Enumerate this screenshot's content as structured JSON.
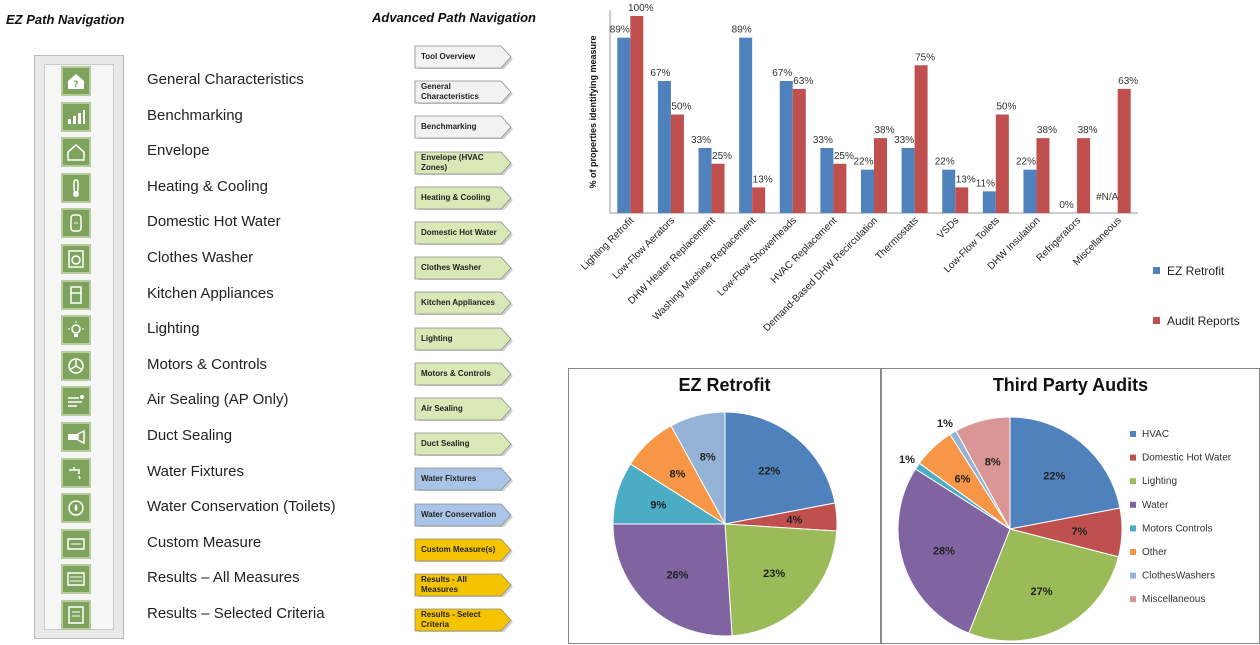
{
  "headers": {
    "ez_path": "EZ Path Navigation",
    "advanced_path": "Advanced Path Navigation"
  },
  "ez_nav": [
    {
      "label": "General Characteristics",
      "icon": "house-question-icon"
    },
    {
      "label": "Benchmarking",
      "icon": "bar-signal-icon"
    },
    {
      "label": "Envelope",
      "icon": "house-outline-icon"
    },
    {
      "label": "Heating & Cooling",
      "icon": "thermometer-icon"
    },
    {
      "label": "Domestic Hot Water",
      "icon": "water-heater-icon"
    },
    {
      "label": "Clothes Washer",
      "icon": "washing-machine-icon"
    },
    {
      "label": "Kitchen Appliances",
      "icon": "refrigerator-icon"
    },
    {
      "label": "Lighting",
      "icon": "light-bulb-icon"
    },
    {
      "label": "Motors & Controls",
      "icon": "fan-icon"
    },
    {
      "label": "Air Sealing (AP Only)",
      "icon": "air-flow-icon"
    },
    {
      "label": "Duct Sealing",
      "icon": "duct-icon"
    },
    {
      "label": "Water Fixtures",
      "icon": "faucet-icon"
    },
    {
      "label": "Water Conservation (Toilets)",
      "icon": "water-recycle-icon"
    },
    {
      "label": "Custom Measure",
      "icon": "custom-measure-icon"
    },
    {
      "label": "Results – All Measures",
      "icon": "results-all-icon"
    },
    {
      "label": "Results – Selected Criteria",
      "icon": "results-selected-icon"
    }
  ],
  "advanced_nav": [
    {
      "label": "Tool Overview",
      "color": "#f2f2f2"
    },
    {
      "label": "General Characteristics",
      "color": "#f2f2f2"
    },
    {
      "label": "Benchmarking",
      "color": "#f2f2f2"
    },
    {
      "label": "Envelope (HVAC Zones)",
      "color": "#d8e8b6"
    },
    {
      "label": "Heating & Cooling",
      "color": "#d8e8b6"
    },
    {
      "label": "Domestic Hot Water",
      "color": "#d8e8b6"
    },
    {
      "label": "Clothes Washer",
      "color": "#d8e8b6"
    },
    {
      "label": "Kitchen Appliances",
      "color": "#d8e8b6"
    },
    {
      "label": "Lighting",
      "color": "#d8e8b6"
    },
    {
      "label": "Motors & Controls",
      "color": "#d8e8b6"
    },
    {
      "label": "Air Sealing",
      "color": "#d8e8b6"
    },
    {
      "label": "Duct Sealing",
      "color": "#d8e8b6"
    },
    {
      "label": "Water Fixtures",
      "color": "#a9c4e6"
    },
    {
      "label": "Water Conservation",
      "color": "#a9c4e6"
    },
    {
      "label": "Custom Measure(s)",
      "color": "#f5c400"
    },
    {
      "label": "Results - All Measures",
      "color": "#f5c400"
    },
    {
      "label": "Results - Select Criteria",
      "color": "#f5c400"
    }
  ],
  "chart_data": [
    {
      "type": "bar",
      "ylabel": "% of properties identifying measure",
      "ylim": [
        0,
        100
      ],
      "grid": false,
      "legend_position": "right",
      "categories": [
        "Lighting Retrofit",
        "Low-Flow Aerators",
        "DHW Heater Replacement",
        "Washing Machine Replacement",
        "Low-Flow Showerheads",
        "HVAC Replacement",
        "Demand-Based DHW Recirculation",
        "Thermostats",
        "VSDs",
        "Low-Flow Toilets",
        "DHW Insulation",
        "Refrigerators",
        "Miscellaneous"
      ],
      "series": [
        {
          "name": "EZ Retrofit",
          "color": "#4f81bd",
          "values": [
            89,
            67,
            33,
            89,
            67,
            33,
            22,
            33,
            22,
            11,
            22,
            0,
            null
          ],
          "labels": [
            "89%",
            "67%",
            "33%",
            "89%",
            "67%",
            "33%",
            "22%",
            "33%",
            "22%",
            "11%",
            "22%",
            "0%",
            "#N/A"
          ]
        },
        {
          "name": "Audit Reports",
          "color": "#c0504d",
          "values": [
            100,
            50,
            25,
            13,
            63,
            25,
            38,
            75,
            13,
            50,
            38,
            38,
            63
          ],
          "labels": [
            "100%",
            "50%",
            "25%",
            "13%",
            "63%",
            "25%",
            "38%",
            "75%",
            "13%",
            "50%",
            "38%",
            "38%",
            "63%"
          ]
        }
      ]
    },
    {
      "type": "pie",
      "title": "EZ Retrofit",
      "slices": [
        {
          "category": "HVAC",
          "value": 22,
          "label": "22%",
          "color": "#4f81bd"
        },
        {
          "category": "Domestic Hot Water",
          "value": 4,
          "label": "4%",
          "color": "#c0504d"
        },
        {
          "category": "Lighting",
          "value": 23,
          "label": "23%",
          "color": "#9bbb59"
        },
        {
          "category": "Water",
          "value": 26,
          "label": "26%",
          "color": "#8064a2"
        },
        {
          "category": "Motors Controls",
          "value": 9,
          "label": "9%",
          "color": "#4bacc6"
        },
        {
          "category": "Other",
          "value": 8,
          "label": "8%",
          "color": "#f79646"
        },
        {
          "category": "ClothesWashers",
          "value": 8,
          "label": "8%",
          "color": "#95b3d7"
        }
      ]
    },
    {
      "type": "pie",
      "title": "Third Party Audits",
      "legend_position": "right",
      "slices": [
        {
          "category": "HVAC",
          "value": 22,
          "label": "22%",
          "color": "#4f81bd"
        },
        {
          "category": "Domestic Hot Water",
          "value": 7,
          "label": "7%",
          "color": "#c0504d"
        },
        {
          "category": "Lighting",
          "value": 27,
          "label": "27%",
          "color": "#9bbb59"
        },
        {
          "category": "Water",
          "value": 28,
          "label": "28%",
          "color": "#8064a2"
        },
        {
          "category": "Motors Controls",
          "value": 1,
          "label": "1%",
          "color": "#4bacc6"
        },
        {
          "category": "Other",
          "value": 6,
          "label": "6%",
          "color": "#f79646"
        },
        {
          "category": "ClothesWashers",
          "value": 1,
          "label": "1%",
          "color": "#95b3d7"
        },
        {
          "category": "Miscellaneous",
          "value": 8,
          "label": "8%",
          "color": "#d99694"
        }
      ]
    }
  ]
}
